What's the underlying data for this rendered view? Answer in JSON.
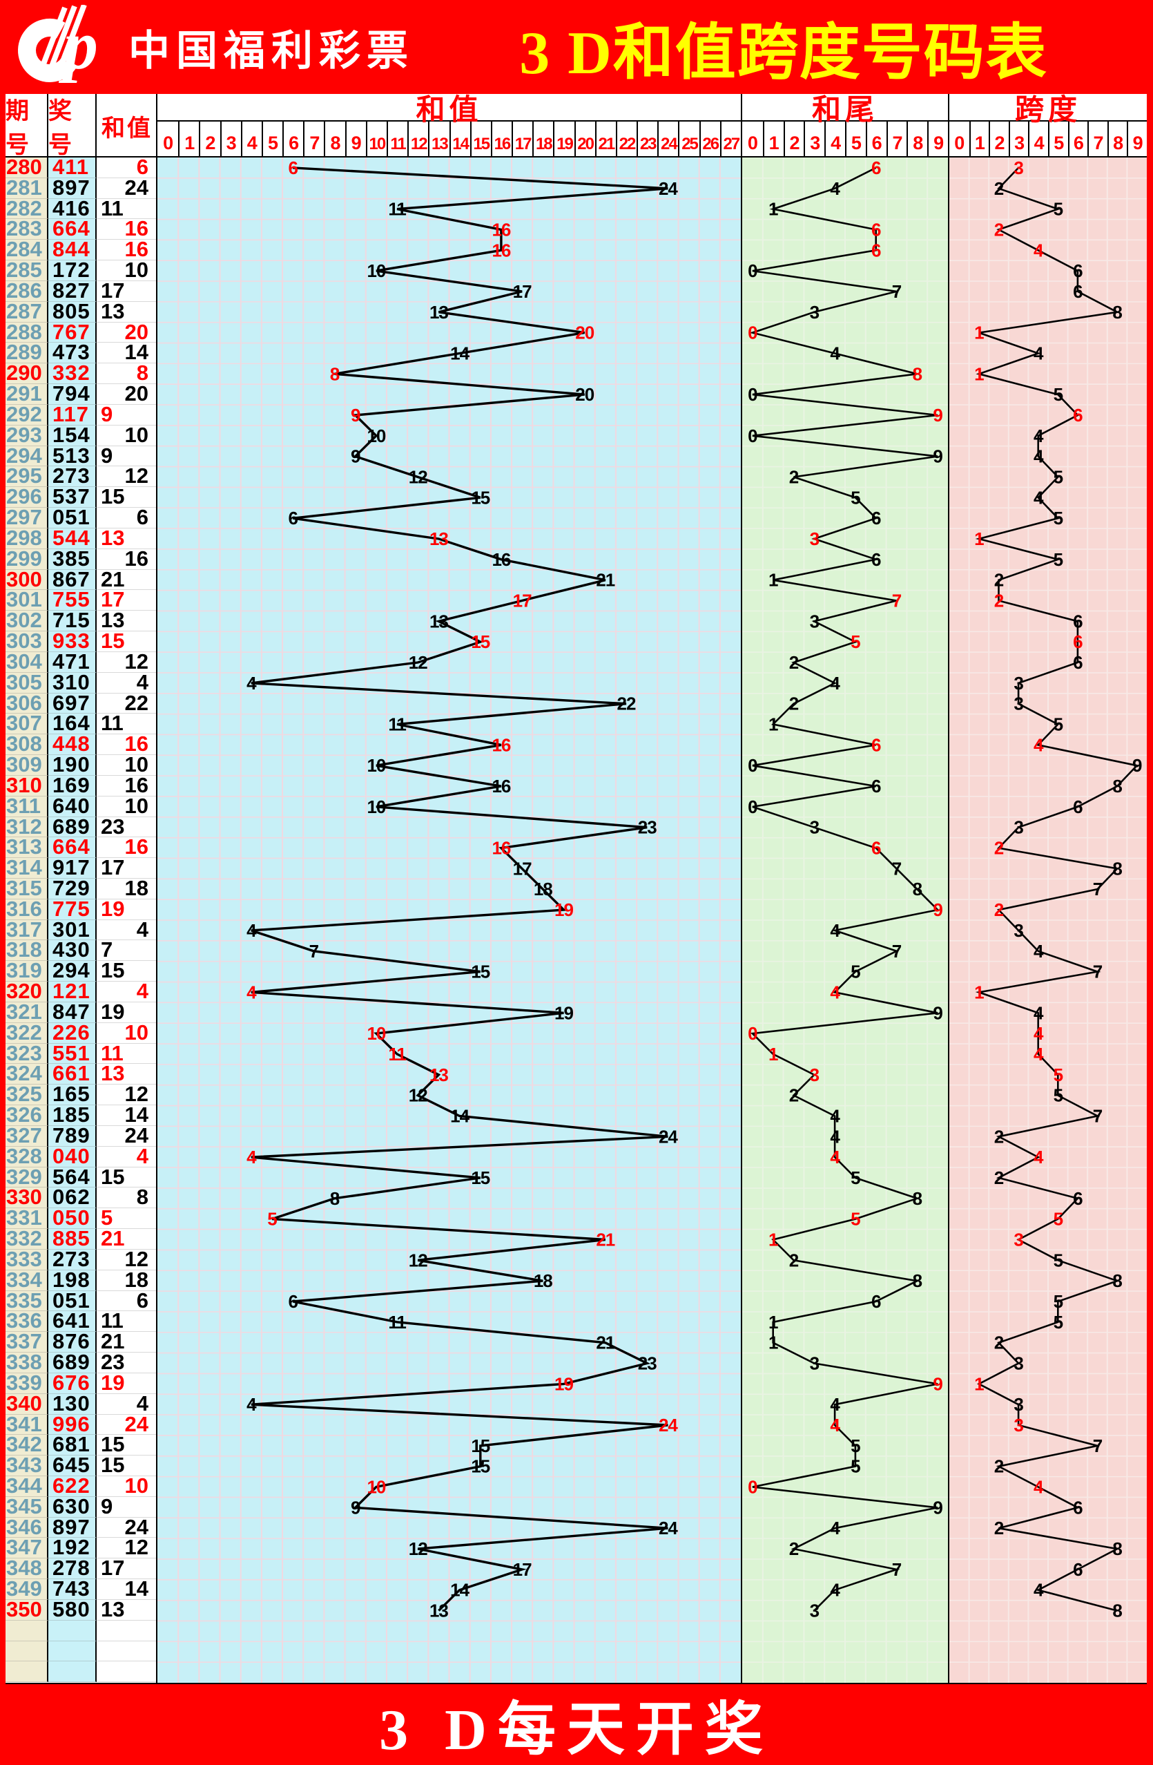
{
  "header": {
    "brand": "中国福利彩票",
    "title": "3 D和值跨度号码表",
    "logo_icon": "china-welfare-lottery-cp-logo"
  },
  "footer": {
    "text": "3 D每天开奖"
  },
  "table": {
    "col_headers": [
      "期号",
      "奖号",
      "和值"
    ],
    "sections": [
      {
        "title": "和值",
        "ticks": [
          "0",
          "1",
          "2",
          "3",
          "4",
          "5",
          "6",
          "7",
          "8",
          "9",
          "10",
          "11",
          "12",
          "13",
          "14",
          "15",
          "16",
          "17",
          "18",
          "19",
          "20",
          "21",
          "22",
          "23",
          "24",
          "25",
          "26",
          "27"
        ]
      },
      {
        "title": "和尾",
        "ticks": [
          "0",
          "1",
          "2",
          "3",
          "4",
          "5",
          "6",
          "7",
          "8",
          "9"
        ]
      },
      {
        "title": "跨度",
        "ticks": [
          "0",
          "1",
          "2",
          "3",
          "4",
          "5",
          "6",
          "7",
          "8",
          "9"
        ]
      }
    ]
  },
  "rows": [
    {
      "period": 280,
      "number": "411",
      "sum": 6,
      "tail": 6,
      "span": 3,
      "red": true
    },
    {
      "period": 281,
      "number": "897",
      "sum": 24,
      "tail": 4,
      "span": 2,
      "red": false
    },
    {
      "period": 282,
      "number": "416",
      "sum": 11,
      "tail": 1,
      "span": 5,
      "red": false
    },
    {
      "period": 283,
      "number": "664",
      "sum": 16,
      "tail": 6,
      "span": 2,
      "red": true
    },
    {
      "period": 284,
      "number": "844",
      "sum": 16,
      "tail": 6,
      "span": 4,
      "red": true
    },
    {
      "period": 285,
      "number": "172",
      "sum": 10,
      "tail": 0,
      "span": 6,
      "red": false
    },
    {
      "period": 286,
      "number": "827",
      "sum": 17,
      "tail": 7,
      "span": 6,
      "red": false
    },
    {
      "period": 287,
      "number": "805",
      "sum": 13,
      "tail": 3,
      "span": 8,
      "red": false
    },
    {
      "period": 288,
      "number": "767",
      "sum": 20,
      "tail": 0,
      "span": 1,
      "red": true
    },
    {
      "period": 289,
      "number": "473",
      "sum": 14,
      "tail": 4,
      "span": 4,
      "red": false
    },
    {
      "period": 290,
      "number": "332",
      "sum": 8,
      "tail": 8,
      "span": 1,
      "red": true
    },
    {
      "period": 291,
      "number": "794",
      "sum": 20,
      "tail": 0,
      "span": 5,
      "red": false
    },
    {
      "period": 292,
      "number": "117",
      "sum": 9,
      "tail": 9,
      "span": 6,
      "red": true
    },
    {
      "period": 293,
      "number": "154",
      "sum": 10,
      "tail": 0,
      "span": 4,
      "red": false
    },
    {
      "period": 294,
      "number": "513",
      "sum": 9,
      "tail": 9,
      "span": 4,
      "red": false
    },
    {
      "period": 295,
      "number": "273",
      "sum": 12,
      "tail": 2,
      "span": 5,
      "red": false
    },
    {
      "period": 296,
      "number": "537",
      "sum": 15,
      "tail": 5,
      "span": 4,
      "red": false
    },
    {
      "period": 297,
      "number": "051",
      "sum": 6,
      "tail": 6,
      "span": 5,
      "red": false
    },
    {
      "period": 298,
      "number": "544",
      "sum": 13,
      "tail": 3,
      "span": 1,
      "red": true
    },
    {
      "period": 299,
      "number": "385",
      "sum": 16,
      "tail": 6,
      "span": 5,
      "red": false
    },
    {
      "period": 300,
      "number": "867",
      "sum": 21,
      "tail": 1,
      "span": 2,
      "red": false
    },
    {
      "period": 301,
      "number": "755",
      "sum": 17,
      "tail": 7,
      "span": 2,
      "red": true
    },
    {
      "period": 302,
      "number": "715",
      "sum": 13,
      "tail": 3,
      "span": 6,
      "red": false
    },
    {
      "period": 303,
      "number": "933",
      "sum": 15,
      "tail": 5,
      "span": 6,
      "red": true
    },
    {
      "period": 304,
      "number": "471",
      "sum": 12,
      "tail": 2,
      "span": 6,
      "red": false
    },
    {
      "period": 305,
      "number": "310",
      "sum": 4,
      "tail": 4,
      "span": 3,
      "red": false
    },
    {
      "period": 306,
      "number": "697",
      "sum": 22,
      "tail": 2,
      "span": 3,
      "red": false
    },
    {
      "period": 307,
      "number": "164",
      "sum": 11,
      "tail": 1,
      "span": 5,
      "red": false
    },
    {
      "period": 308,
      "number": "448",
      "sum": 16,
      "tail": 6,
      "span": 4,
      "red": true
    },
    {
      "period": 309,
      "number": "190",
      "sum": 10,
      "tail": 0,
      "span": 9,
      "red": false
    },
    {
      "period": 310,
      "number": "169",
      "sum": 16,
      "tail": 6,
      "span": 8,
      "red": false
    },
    {
      "period": 311,
      "number": "640",
      "sum": 10,
      "tail": 0,
      "span": 6,
      "red": false
    },
    {
      "period": 312,
      "number": "689",
      "sum": 23,
      "tail": 3,
      "span": 3,
      "red": false
    },
    {
      "period": 313,
      "number": "664",
      "sum": 16,
      "tail": 6,
      "span": 2,
      "red": true
    },
    {
      "period": 314,
      "number": "917",
      "sum": 17,
      "tail": 7,
      "span": 8,
      "red": false
    },
    {
      "period": 315,
      "number": "729",
      "sum": 18,
      "tail": 8,
      "span": 7,
      "red": false
    },
    {
      "period": 316,
      "number": "775",
      "sum": 19,
      "tail": 9,
      "span": 2,
      "red": true
    },
    {
      "period": 317,
      "number": "301",
      "sum": 4,
      "tail": 4,
      "span": 3,
      "red": false
    },
    {
      "period": 318,
      "number": "430",
      "sum": 7,
      "tail": 7,
      "span": 4,
      "red": false
    },
    {
      "period": 319,
      "number": "294",
      "sum": 15,
      "tail": 5,
      "span": 7,
      "red": false
    },
    {
      "period": 320,
      "number": "121",
      "sum": 4,
      "tail": 4,
      "span": 1,
      "red": true
    },
    {
      "period": 321,
      "number": "847",
      "sum": 19,
      "tail": 9,
      "span": 4,
      "red": false
    },
    {
      "period": 322,
      "number": "226",
      "sum": 10,
      "tail": 0,
      "span": 4,
      "red": true
    },
    {
      "period": 323,
      "number": "551",
      "sum": 11,
      "tail": 1,
      "span": 4,
      "red": true
    },
    {
      "period": 324,
      "number": "661",
      "sum": 13,
      "tail": 3,
      "span": 5,
      "red": true
    },
    {
      "period": 325,
      "number": "165",
      "sum": 12,
      "tail": 2,
      "span": 5,
      "red": false
    },
    {
      "period": 326,
      "number": "185",
      "sum": 14,
      "tail": 4,
      "span": 7,
      "red": false
    },
    {
      "period": 327,
      "number": "789",
      "sum": 24,
      "tail": 4,
      "span": 2,
      "red": false
    },
    {
      "period": 328,
      "number": "040",
      "sum": 4,
      "tail": 4,
      "span": 4,
      "red": true
    },
    {
      "period": 329,
      "number": "564",
      "sum": 15,
      "tail": 5,
      "span": 2,
      "red": false
    },
    {
      "period": 330,
      "number": "062",
      "sum": 8,
      "tail": 8,
      "span": 6,
      "red": false
    },
    {
      "period": 331,
      "number": "050",
      "sum": 5,
      "tail": 5,
      "span": 5,
      "red": true
    },
    {
      "period": 332,
      "number": "885",
      "sum": 21,
      "tail": 1,
      "span": 3,
      "red": true
    },
    {
      "period": 333,
      "number": "273",
      "sum": 12,
      "tail": 2,
      "span": 5,
      "red": false
    },
    {
      "period": 334,
      "number": "198",
      "sum": 18,
      "tail": 8,
      "span": 8,
      "red": false
    },
    {
      "period": 335,
      "number": "051",
      "sum": 6,
      "tail": 6,
      "span": 5,
      "red": false
    },
    {
      "period": 336,
      "number": "641",
      "sum": 11,
      "tail": 1,
      "span": 5,
      "red": false
    },
    {
      "period": 337,
      "number": "876",
      "sum": 21,
      "tail": 1,
      "span": 2,
      "red": false
    },
    {
      "period": 338,
      "number": "689",
      "sum": 23,
      "tail": 3,
      "span": 3,
      "red": false
    },
    {
      "period": 339,
      "number": "676",
      "sum": 19,
      "tail": 9,
      "span": 1,
      "red": true
    },
    {
      "period": 340,
      "number": "130",
      "sum": 4,
      "tail": 4,
      "span": 3,
      "red": false
    },
    {
      "period": 341,
      "number": "996",
      "sum": 24,
      "tail": 4,
      "span": 3,
      "red": true
    },
    {
      "period": 342,
      "number": "681",
      "sum": 15,
      "tail": 5,
      "span": 7,
      "red": false
    },
    {
      "period": 343,
      "number": "645",
      "sum": 15,
      "tail": 5,
      "span": 2,
      "red": false
    },
    {
      "period": 344,
      "number": "622",
      "sum": 10,
      "tail": 0,
      "span": 4,
      "red": true
    },
    {
      "period": 345,
      "number": "630",
      "sum": 9,
      "tail": 9,
      "span": 6,
      "red": false
    },
    {
      "period": 346,
      "number": "897",
      "sum": 24,
      "tail": 4,
      "span": 2,
      "red": false
    },
    {
      "period": 347,
      "number": "192",
      "sum": 12,
      "tail": 2,
      "span": 8,
      "red": false
    },
    {
      "period": 348,
      "number": "278",
      "sum": 17,
      "tail": 7,
      "span": 6,
      "red": false
    },
    {
      "period": 349,
      "number": "743",
      "sum": 14,
      "tail": 4,
      "span": 4,
      "red": false
    },
    {
      "period": 350,
      "number": "580",
      "sum": 13,
      "tail": 3,
      "span": 8,
      "red": false
    }
  ],
  "empty_trailing_rows": 3,
  "colors": {
    "banner_red": "#ff0000",
    "title_yellow": "#ffff00",
    "brand_white": "#ffffff",
    "period_blue": "#6d9fb2",
    "period_col_bg": "#f0ecd2",
    "number_col_bg": "#c9f1f8",
    "sum_col_bg": "#ffffff",
    "hot_red": "#ff0000",
    "value_black": "#000000",
    "chart_sum_bg": "#c7f0f7",
    "chart_tail_bg": "#dcf4d4",
    "chart_span_bg": "#f8d8d4",
    "grid_sum": "#f1d9e1",
    "grid_tail": "#eaf3e3",
    "grid_span": "#f7e9e6",
    "line_black": "#000000"
  },
  "chart_data": {
    "type": "line",
    "title": "3D和值跨度号码表",
    "orientation": "vertical, one draw per row, periods 280-350 top to bottom",
    "grid": true,
    "x_periods": [
      280,
      281,
      282,
      283,
      284,
      285,
      286,
      287,
      288,
      289,
      290,
      291,
      292,
      293,
      294,
      295,
      296,
      297,
      298,
      299,
      300,
      301,
      302,
      303,
      304,
      305,
      306,
      307,
      308,
      309,
      310,
      311,
      312,
      313,
      314,
      315,
      316,
      317,
      318,
      319,
      320,
      321,
      322,
      323,
      324,
      325,
      326,
      327,
      328,
      329,
      330,
      331,
      332,
      333,
      334,
      335,
      336,
      337,
      338,
      339,
      340,
      341,
      342,
      343,
      344,
      345,
      346,
      347,
      348,
      349,
      350
    ],
    "series": [
      {
        "name": "和值",
        "axis_range": [
          0,
          27
        ],
        "values": [
          6,
          24,
          11,
          16,
          16,
          10,
          17,
          13,
          20,
          14,
          8,
          20,
          9,
          10,
          9,
          12,
          15,
          6,
          13,
          16,
          21,
          17,
          13,
          15,
          12,
          4,
          22,
          11,
          16,
          10,
          16,
          10,
          23,
          16,
          17,
          18,
          19,
          4,
          7,
          15,
          4,
          19,
          10,
          11,
          13,
          12,
          14,
          24,
          4,
          15,
          8,
          5,
          21,
          12,
          18,
          6,
          11,
          21,
          23,
          19,
          4,
          24,
          15,
          15,
          10,
          9,
          24,
          12,
          17,
          14,
          13
        ]
      },
      {
        "name": "和尾",
        "axis_range": [
          0,
          9
        ],
        "values": [
          6,
          4,
          1,
          6,
          6,
          0,
          7,
          3,
          0,
          4,
          8,
          0,
          9,
          0,
          9,
          2,
          5,
          6,
          3,
          6,
          1,
          7,
          3,
          5,
          2,
          4,
          2,
          1,
          6,
          0,
          6,
          0,
          3,
          6,
          7,
          8,
          9,
          4,
          7,
          5,
          4,
          9,
          0,
          1,
          3,
          2,
          4,
          4,
          4,
          5,
          8,
          5,
          1,
          2,
          8,
          6,
          1,
          1,
          3,
          9,
          4,
          4,
          5,
          5,
          0,
          9,
          4,
          2,
          7,
          4,
          3
        ]
      },
      {
        "name": "跨度",
        "axis_range": [
          0,
          9
        ],
        "values": [
          3,
          2,
          5,
          2,
          4,
          6,
          6,
          8,
          1,
          4,
          1,
          5,
          6,
          4,
          4,
          5,
          4,
          5,
          1,
          5,
          2,
          2,
          6,
          6,
          6,
          3,
          3,
          5,
          4,
          9,
          8,
          6,
          3,
          2,
          8,
          7,
          2,
          3,
          4,
          7,
          1,
          4,
          4,
          4,
          5,
          5,
          7,
          2,
          4,
          2,
          6,
          5,
          3,
          5,
          8,
          5,
          5,
          2,
          3,
          1,
          3,
          3,
          7,
          2,
          4,
          6,
          2,
          8,
          6,
          4,
          8
        ]
      }
    ]
  }
}
